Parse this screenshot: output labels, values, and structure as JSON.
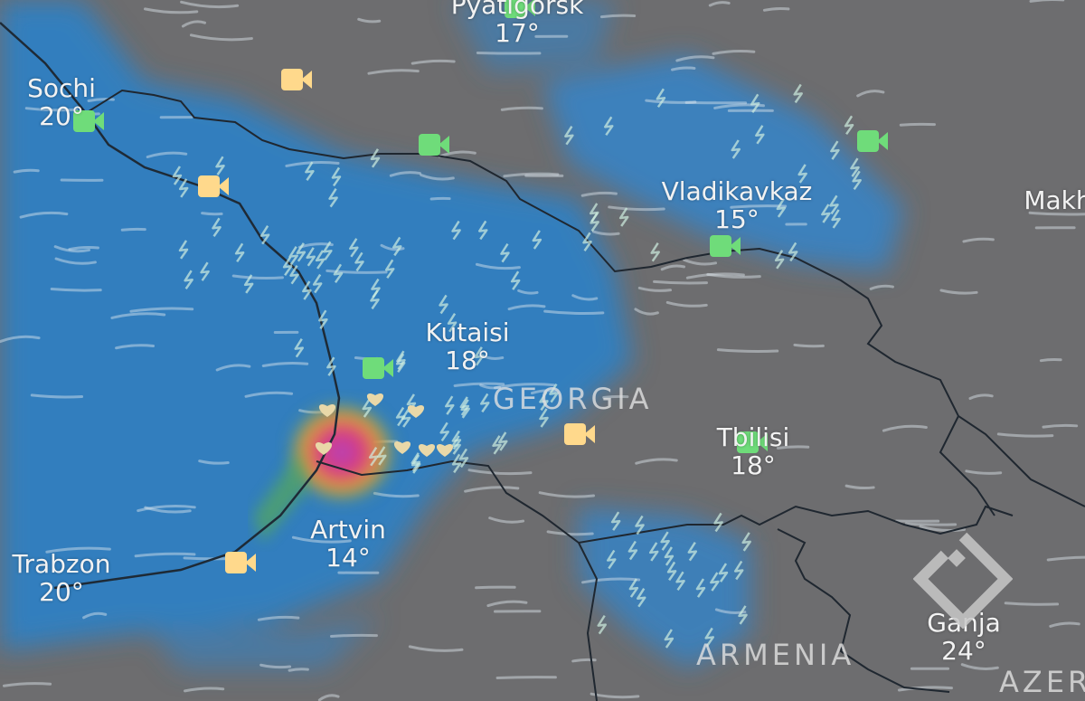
{
  "map": {
    "cities": [
      {
        "name": "Pyatigorsk",
        "temp": "17°"
      },
      {
        "name": "Sochi",
        "temp": "20°"
      },
      {
        "name": "Vladikavkaz",
        "temp": "15°"
      },
      {
        "name": "Makh",
        "temp": ""
      },
      {
        "name": "Kutaisi",
        "temp": "18°"
      },
      {
        "name": "Tbilisi",
        "temp": "18°"
      },
      {
        "name": "Artvin",
        "temp": "14°"
      },
      {
        "name": "Trabzon",
        "temp": "20°"
      },
      {
        "name": "Ganja",
        "temp": "24°"
      }
    ],
    "countries": [
      "GEORGIA",
      "ARMENIA",
      "AZER"
    ],
    "webcam_colors": {
      "active": "#6fdc7a",
      "stale": "#ffd98c"
    },
    "precip_colors": {
      "light": "#2f86c9",
      "moderate": "#3aa0b0",
      "heavy": "#d93a7a",
      "extreme": "#b146c2"
    },
    "icons": [
      "webcam-icon",
      "lightning-icon",
      "heart-icon",
      "logo-icon"
    ]
  }
}
